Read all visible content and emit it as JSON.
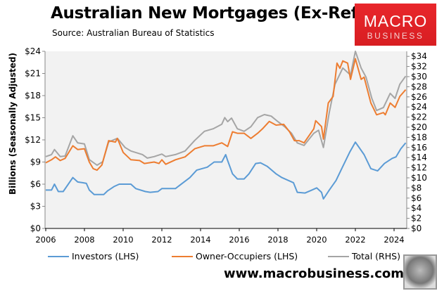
{
  "header": {
    "title": "Australian New Mortgages (Ex-Refi)",
    "source": "Source: Australian Bureau of Statistics"
  },
  "logo": {
    "line1": "MACRO",
    "line2": "BUSINESS",
    "color": "#e0242a"
  },
  "footer": {
    "url": "www.macrobusiness.com.au",
    "fox_icon": "fox-logo-icon"
  },
  "chart_data": {
    "type": "line",
    "title": "Australian New Mortgages (Ex-Refi)",
    "ylabel": "Billions (Seasonally Adjusted)",
    "xlim": [
      2006,
      2024.7
    ],
    "ylim_lhs": [
      0,
      24
    ],
    "ylim_rhs": [
      0,
      35
    ],
    "x_ticks": [
      "2006",
      "2008",
      "2010",
      "2012",
      "2014",
      "2016",
      "2018",
      "2020",
      "2022",
      "2024"
    ],
    "lhs_ticks": [
      "$0",
      "$3",
      "$6",
      "$9",
      "$12",
      "$15",
      "$18",
      "$21",
      "$24"
    ],
    "rhs_ticks": [
      "$0",
      "$2",
      "$4",
      "$6",
      "$8",
      "$10",
      "$12",
      "$14",
      "$16",
      "$18",
      "$20",
      "$22",
      "$24",
      "$26",
      "$28",
      "$30",
      "$32",
      "$34"
    ],
    "grid": false,
    "legend_position": "bottom",
    "series": [
      {
        "name": "Investors (LHS)",
        "axis": "lhs",
        "color": "#5b9bd5",
        "x": [
          2006.0,
          2006.3,
          2006.45,
          2006.65,
          2006.9,
          2007.4,
          2007.65,
          2007.9,
          2008.1,
          2008.25,
          2008.5,
          2009.0,
          2009.2,
          2009.55,
          2009.8,
          2010.4,
          2010.65,
          2011.15,
          2011.4,
          2011.8,
          2012.0,
          2012.7,
          2013.1,
          2013.45,
          2013.8,
          2014.35,
          2014.7,
          2015.1,
          2015.3,
          2015.4,
          2015.65,
          2015.9,
          2016.25,
          2016.5,
          2016.85,
          2017.1,
          2017.45,
          2017.9,
          2018.2,
          2018.8,
          2019.0,
          2019.4,
          2019.75,
          2020.0,
          2020.25,
          2020.35,
          2020.65,
          2021.0,
          2021.35,
          2021.7,
          2022.0,
          2022.45,
          2022.8,
          2023.15,
          2023.5,
          2023.9,
          2024.1,
          2024.35,
          2024.6
        ],
        "y": [
          5.2,
          5.2,
          6.0,
          5.0,
          5.0,
          6.9,
          6.3,
          6.2,
          6.1,
          5.2,
          4.6,
          4.6,
          5.1,
          5.7,
          6.0,
          6.0,
          5.4,
          5.0,
          4.9,
          5.0,
          5.4,
          5.4,
          6.2,
          6.9,
          7.9,
          8.3,
          9.0,
          9.0,
          10.0,
          9.2,
          7.4,
          6.7,
          6.7,
          7.4,
          8.8,
          8.9,
          8.4,
          7.4,
          6.9,
          6.2,
          4.9,
          4.8,
          5.2,
          5.5,
          4.9,
          4.0,
          5.2,
          6.5,
          8.4,
          10.3,
          11.7,
          10.0,
          8.1,
          7.8,
          8.8,
          9.5,
          9.7,
          10.8,
          11.6
        ]
      },
      {
        "name": "Owner-Occupiers (LHS)",
        "axis": "lhs",
        "color": "#ed7d31",
        "x": [
          2006.0,
          2006.3,
          2006.5,
          2006.75,
          2007.0,
          2007.4,
          2007.65,
          2008.0,
          2008.25,
          2008.45,
          2008.65,
          2008.9,
          2009.25,
          2009.6,
          2009.7,
          2010.0,
          2010.4,
          2010.85,
          2011.1,
          2011.6,
          2011.85,
          2012.0,
          2012.2,
          2012.7,
          2013.2,
          2013.7,
          2014.2,
          2014.65,
          2015.1,
          2015.4,
          2015.65,
          2015.9,
          2016.25,
          2016.6,
          2016.95,
          2017.2,
          2017.55,
          2017.9,
          2018.3,
          2018.6,
          2018.85,
          2019.1,
          2019.35,
          2019.85,
          2019.95,
          2020.25,
          2020.35,
          2020.6,
          2020.85,
          2021.05,
          2021.2,
          2021.35,
          2021.6,
          2021.75,
          2022.0,
          2022.3,
          2022.45,
          2022.8,
          2023.1,
          2023.45,
          2023.55,
          2023.8,
          2024.05,
          2024.3,
          2024.6
        ],
        "y": [
          8.9,
          9.3,
          9.7,
          9.2,
          9.5,
          11.2,
          10.7,
          10.8,
          9.0,
          8.1,
          7.9,
          8.6,
          11.9,
          11.7,
          12.2,
          10.3,
          9.3,
          9.2,
          8.8,
          9.0,
          8.8,
          9.3,
          8.7,
          9.3,
          9.7,
          10.8,
          11.2,
          11.2,
          11.6,
          11.1,
          13.1,
          12.9,
          12.9,
          12.2,
          12.9,
          13.5,
          14.5,
          14.0,
          14.1,
          13.1,
          11.9,
          11.9,
          11.6,
          13.5,
          14.6,
          13.8,
          12.1,
          17.0,
          17.9,
          22.4,
          21.7,
          22.7,
          22.4,
          20.2,
          23.0,
          20.2,
          20.5,
          17.0,
          15.4,
          15.7,
          15.4,
          17.0,
          16.4,
          17.9,
          18.8
        ]
      },
      {
        "name": "Total (RHS)",
        "axis": "rhs",
        "color": "#a5a5a5",
        "x": [
          2006.0,
          2006.3,
          2006.45,
          2006.75,
          2007.0,
          2007.4,
          2007.65,
          2008.0,
          2008.25,
          2008.65,
          2008.95,
          2009.25,
          2009.7,
          2010.1,
          2010.4,
          2011.0,
          2011.25,
          2011.6,
          2012.0,
          2012.2,
          2012.7,
          2013.2,
          2013.7,
          2014.2,
          2014.65,
          2015.1,
          2015.25,
          2015.4,
          2015.6,
          2015.9,
          2016.25,
          2016.6,
          2016.95,
          2017.3,
          2017.65,
          2018.0,
          2018.35,
          2018.7,
          2019.0,
          2019.35,
          2019.85,
          2020.1,
          2020.35,
          2020.65,
          2020.95,
          2021.35,
          2021.75,
          2022.0,
          2022.3,
          2022.55,
          2022.85,
          2023.1,
          2023.45,
          2023.8,
          2024.05,
          2024.3,
          2024.6
        ],
        "y": [
          14.2,
          14.6,
          15.6,
          14.2,
          14.3,
          18.3,
          16.9,
          16.7,
          13.6,
          12.5,
          13.2,
          17.1,
          17.8,
          16.0,
          15.3,
          14.6,
          13.9,
          14.2,
          14.7,
          14.2,
          14.6,
          15.3,
          17.4,
          19.2,
          19.7,
          20.6,
          21.9,
          21.1,
          21.8,
          19.7,
          19.2,
          20.1,
          21.9,
          22.5,
          22.2,
          21.1,
          20.1,
          18.8,
          16.9,
          16.4,
          18.8,
          19.4,
          16.0,
          22.9,
          28.5,
          31.7,
          30.3,
          35.0,
          31.7,
          29.9,
          25.7,
          23.3,
          23.9,
          26.7,
          25.7,
          28.5,
          30.1
        ]
      }
    ]
  }
}
